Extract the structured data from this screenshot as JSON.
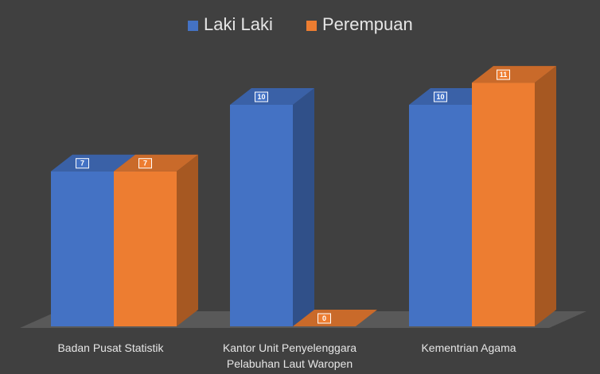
{
  "chart_data": {
    "type": "bar3d",
    "categories": [
      "Badan Pusat Statistik",
      "Kantor Unit Penyelenggara Pelabuhan Laut Waropen",
      "Kementrian Agama"
    ],
    "series": [
      {
        "name": "Laki Laki",
        "color": "#4472c4",
        "values": [
          7,
          10,
          10
        ]
      },
      {
        "name": "Perempuan",
        "color": "#ed7d31",
        "values": [
          7,
          0,
          11
        ]
      }
    ],
    "legend": "top"
  }
}
